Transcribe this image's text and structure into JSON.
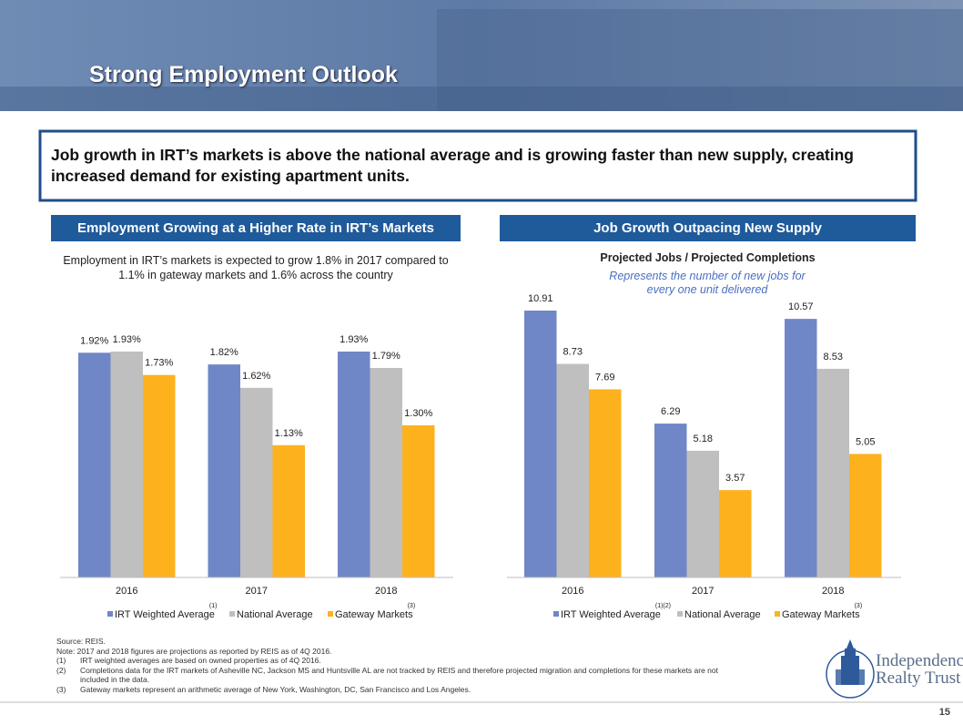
{
  "header": {
    "title": "Strong Employment Outlook"
  },
  "callout": "Job growth in IRT’s markets is above the national average and is growing faster than new supply, creating increased demand for existing apartment units.",
  "chart_data": [
    {
      "type": "bar",
      "title": "Employment Growing at a Higher Rate in IRT’s Markets",
      "subtitle": "Employment in IRT’s markets is expected to grow 1.8% in 2017 compared to 1.1% in gateway markets and 1.6% across the country",
      "categories": [
        "2016",
        "2017",
        "2018"
      ],
      "series": [
        {
          "name": "IRT Weighted Average",
          "note": "(1)",
          "color": "#6f87c6",
          "values": [
            1.92,
            1.82,
            1.93
          ],
          "value_labels": [
            "1.92%",
            "1.82%",
            "1.93%"
          ]
        },
        {
          "name": "National Average",
          "color": "#bfbfbf",
          "values": [
            1.93,
            1.62,
            1.79
          ],
          "value_labels": [
            "1.93%",
            "1.62%",
            "1.79%"
          ]
        },
        {
          "name": "Gateway Markets",
          "note": "(3)",
          "color": "#fdb21d",
          "values": [
            1.73,
            1.13,
            1.3
          ],
          "value_labels": [
            "1.73%",
            "1.13%",
            "1.30%"
          ]
        }
      ]
    },
    {
      "type": "bar",
      "title": "Job Growth Outpacing New Supply",
      "subtitle": "Projected Jobs / Projected Completions",
      "annotation": "Represents the number of new jobs for every one unit delivered",
      "categories": [
        "2016",
        "2017",
        "2018"
      ],
      "series": [
        {
          "name": "IRT Weighted Average",
          "note": "(1)(2)",
          "color": "#6f87c6",
          "values": [
            10.91,
            6.29,
            10.57
          ]
        },
        {
          "name": "National Average",
          "color": "#bfbfbf",
          "values": [
            8.73,
            5.18,
            8.53
          ]
        },
        {
          "name": "Gateway Markets",
          "note": "(3)",
          "color": "#fdb21d",
          "values": [
            7.69,
            3.57,
            5.05
          ]
        }
      ]
    }
  ],
  "footnotes": {
    "source": "Source: REIS.",
    "note": "Note: 2017 and 2018 figures are projections as reported by REIS as of 4Q 2016.",
    "items": [
      {
        "marker": "(1)",
        "text": "IRT weighted averages are based on owned properties as of 4Q 2016."
      },
      {
        "marker": "(2)",
        "text": "Completions data for the IRT markets of Asheville NC, Jackson MS and Huntsville AL are not tracked by REIS and therefore projected migration and completions for these markets are not included in the data."
      },
      {
        "marker": "(3)",
        "text": "Gateway markets represent an arithmetic average of New York, Washington, DC, San Francisco and Los Angeles."
      }
    ]
  },
  "logo": {
    "line1": "Independence",
    "line2": "Realty Trust"
  },
  "page_number": "15"
}
